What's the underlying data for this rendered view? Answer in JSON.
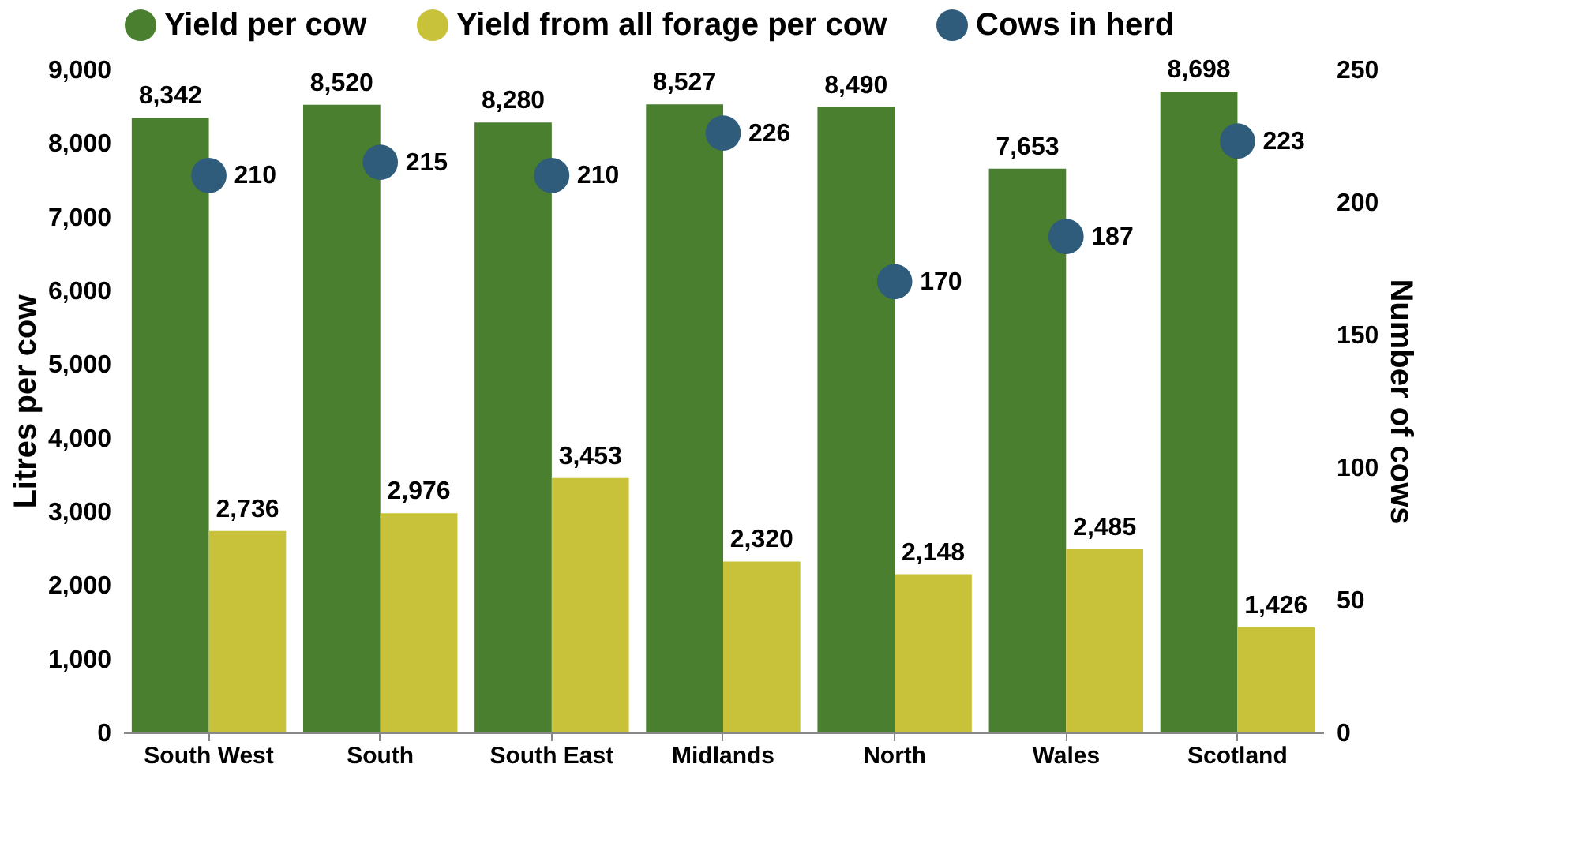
{
  "chart_data": {
    "type": "bar",
    "categories": [
      "South West",
      "South",
      "South East",
      "Midlands",
      "North",
      "Wales",
      "Scotland"
    ],
    "ylabel": "Litres per cow",
    "y2label": "Number of cows",
    "ylim": [
      0,
      9000
    ],
    "yticks": [
      0,
      {
        "value": 1000,
        "label": "1,000"
      },
      {
        "value": 2000,
        "label": "2,000"
      },
      {
        "value": 3000,
        "label": "3,000"
      },
      {
        "value": 4000,
        "label": "4,000"
      },
      {
        "value": 5000,
        "label": "5,000"
      },
      {
        "value": 6000,
        "label": "6,000"
      },
      {
        "value": 7000,
        "label": "7,000"
      },
      {
        "value": 8000,
        "label": "8,000"
      },
      {
        "value": 9000,
        "label": "9,000"
      }
    ],
    "y2lim": [
      0,
      250
    ],
    "y2ticks": [
      0,
      50,
      100,
      150,
      200,
      250
    ],
    "series": [
      {
        "name": "Yield per cow",
        "color": "#4a7f2f",
        "values": [
          8342,
          8520,
          8280,
          8527,
          8490,
          7653,
          8698
        ],
        "value_labels": [
          "8,342",
          "8,520",
          "8,280",
          "8,527",
          "8,490",
          "7,653",
          "8,698"
        ]
      },
      {
        "name": "Yield from all forage per cow",
        "color": "#c8c13a",
        "values": [
          2736,
          2976,
          3453,
          2320,
          2148,
          2485,
          1426
        ],
        "value_labels": [
          "2,736",
          "2,976",
          "3,453",
          "2,320",
          "2,148",
          "2,485",
          "1,426"
        ]
      },
      {
        "name": "Cows in herd",
        "color": "#2e5c7a",
        "type": "scatter",
        "axis": "y2",
        "marker": "circle",
        "values": [
          210,
          215,
          210,
          226,
          170,
          187,
          223
        ],
        "value_labels": [
          "210",
          "215",
          "210",
          "226",
          "170",
          "187",
          "223"
        ]
      }
    ],
    "grid": false,
    "legend": "top"
  }
}
